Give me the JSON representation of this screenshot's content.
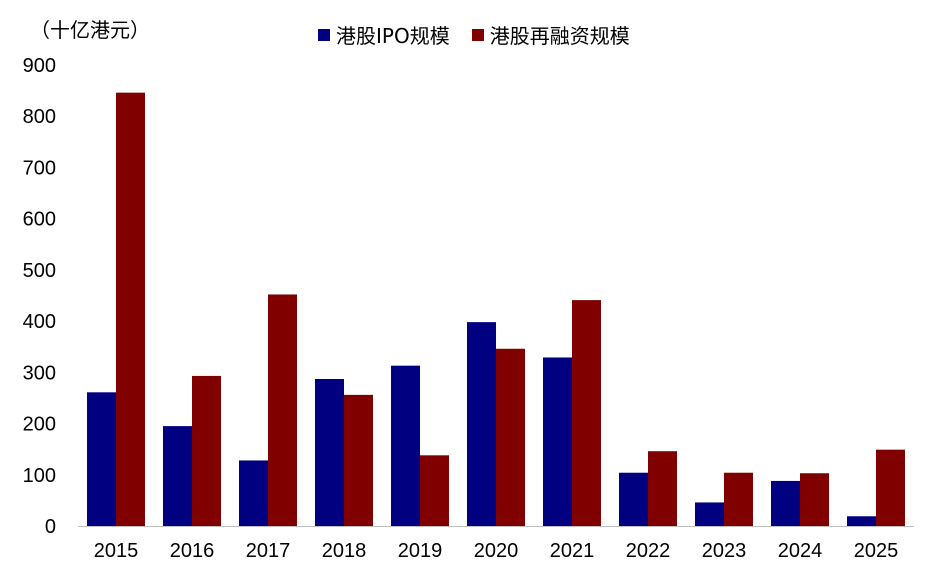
{
  "chart_data": {
    "type": "bar",
    "unit_label": "（十亿港元）",
    "categories": [
      "2015",
      "2016",
      "2017",
      "2018",
      "2019",
      "2020",
      "2021",
      "2022",
      "2023",
      "2024",
      "2025"
    ],
    "series": [
      {
        "name": "港股IPO规模",
        "color": "#000080",
        "values": [
          261,
          195,
          128,
          287,
          313,
          398,
          329,
          104,
          46,
          88,
          19
        ]
      },
      {
        "name": "港股再融资规模",
        "color": "#800000",
        "values": [
          846,
          293,
          452,
          256,
          138,
          346,
          441,
          146,
          104,
          103,
          149
        ]
      }
    ],
    "ylim": [
      0,
      900
    ],
    "yticks": [
      "0",
      "100",
      "200",
      "300",
      "400",
      "500",
      "600",
      "700",
      "800",
      "900"
    ],
    "grid": false,
    "legend_position": "top"
  }
}
